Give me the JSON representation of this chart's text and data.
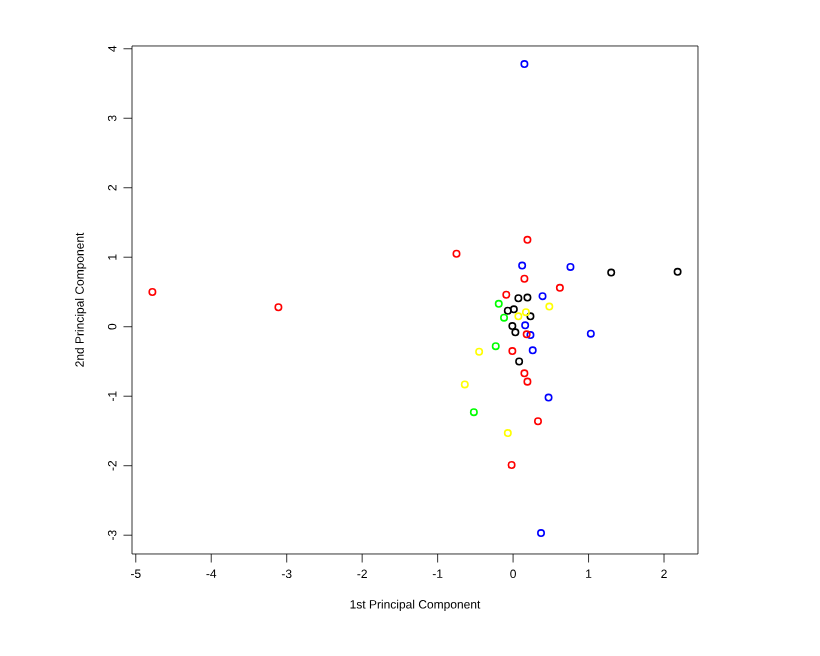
{
  "chart_data": {
    "type": "scatter",
    "xlabel": "1st Principal Component",
    "ylabel": "2nd Principal Component",
    "xlim": [
      -5.05,
      2.45
    ],
    "ylim": [
      -3.27,
      4.04
    ],
    "xticks": [
      -5,
      -4,
      -3,
      -2,
      -1,
      0,
      1,
      2
    ],
    "yticks": [
      -3,
      -2,
      -1,
      0,
      1,
      2,
      3,
      4
    ],
    "marker": "circle",
    "grid": false,
    "series": [
      {
        "color": "#0000ff",
        "x": [
          0.15,
          0.12,
          0.76,
          0.39,
          1.03,
          0.23,
          0.16,
          0.26,
          0.47,
          0.37
        ],
        "values": [
          3.78,
          0.88,
          0.86,
          0.44,
          -0.1,
          -0.12,
          0.02,
          -0.34,
          -1.02,
          -2.97
        ]
      },
      {
        "color": "#ff0000",
        "x": [
          -4.78,
          -3.11,
          -0.75,
          0.19,
          0.15,
          0.62,
          -0.09,
          0.18,
          -0.01,
          0.15,
          0.19,
          0.33,
          -0.02
        ],
        "values": [
          0.5,
          0.28,
          1.05,
          1.25,
          0.69,
          0.56,
          0.46,
          -0.11,
          -0.35,
          -0.67,
          -0.79,
          -1.36,
          -1.99
        ]
      },
      {
        "color": "#000000",
        "x": [
          2.18,
          1.3,
          0.07,
          0.19,
          -0.07,
          0.01,
          0.23,
          -0.01,
          0.03,
          0.08
        ],
        "values": [
          0.79,
          0.78,
          0.41,
          0.42,
          0.23,
          0.25,
          0.15,
          0.01,
          -0.08,
          -0.5
        ]
      },
      {
        "color": "#00ff00",
        "x": [
          -0.19,
          -0.12,
          -0.23,
          -0.52
        ],
        "values": [
          0.33,
          0.13,
          -0.28,
          -1.23
        ]
      },
      {
        "color": "#ffff00",
        "x": [
          0.48,
          0.17,
          0.07,
          -0.45,
          -0.64,
          -0.07
        ],
        "values": [
          0.29,
          0.21,
          0.15,
          -0.36,
          -0.83,
          -1.53
        ]
      }
    ]
  }
}
